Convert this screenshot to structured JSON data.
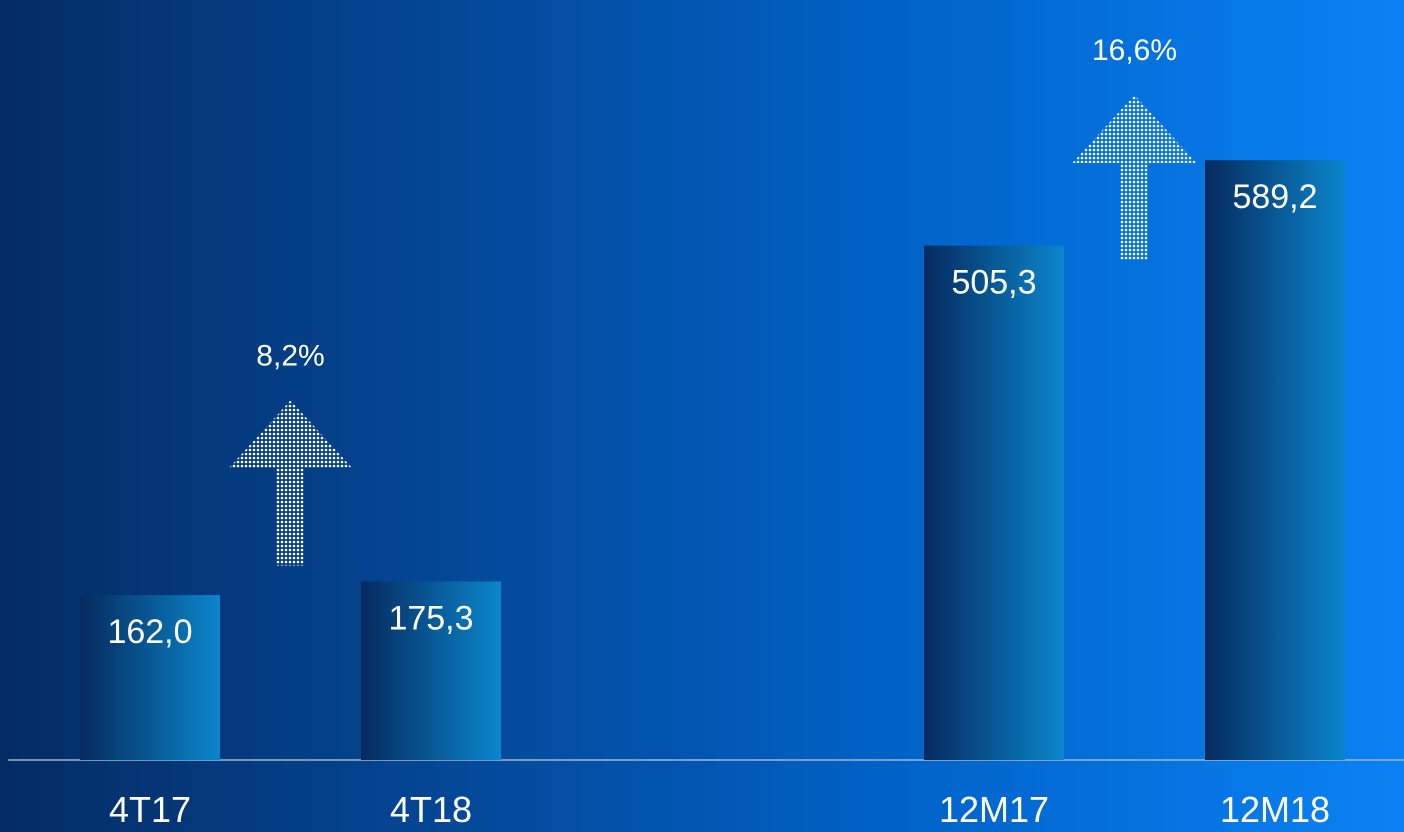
{
  "chart_data": {
    "type": "bar",
    "categories": [
      "4T17",
      "4T18",
      "12M17",
      "12M18"
    ],
    "values": [
      162.0,
      175.3,
      505.3,
      589.2
    ],
    "value_labels": [
      "162,0",
      "175,3",
      "505,3",
      "589,2"
    ],
    "ylim": [
      0,
      725
    ],
    "grid": false,
    "legend": "none",
    "annotations": [
      {
        "text": "8,2%",
        "from": "4T17",
        "to": "4T18",
        "kind": "up-arrow"
      },
      {
        "text": "16,6%",
        "from": "12M17",
        "to": "12M18",
        "kind": "up-arrow"
      }
    ],
    "colors": {
      "bar_start": "#062a5e",
      "bar_end": "#0b86cc",
      "axis": "#9fb4d3",
      "text": "#ffffff"
    }
  }
}
